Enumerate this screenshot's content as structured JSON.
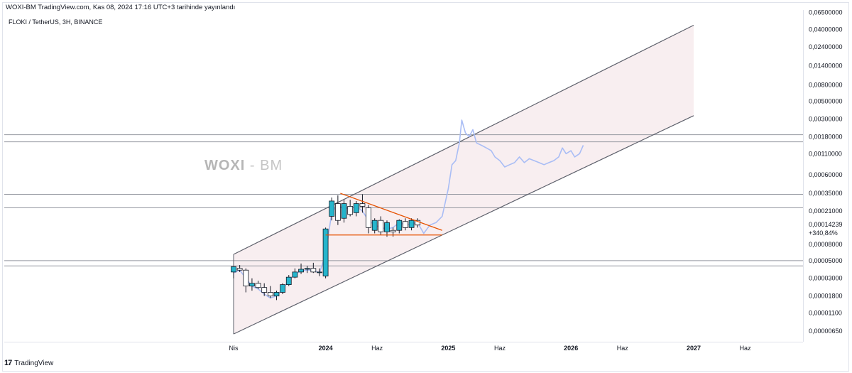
{
  "header": {
    "text": "WOXI-BM TradingView.com, Kas 08, 2024 17:16 UTC+3 tarihinde yayınlandı"
  },
  "symbol": {
    "text": "FLOKI / TetherUS, 3H, BINANCE"
  },
  "watermark": {
    "brand": "WOXI",
    "sep": " - ",
    "suffix": "BM"
  },
  "footer": {
    "logo": "17",
    "text": "TradingView"
  },
  "colors": {
    "channel": "#5d606b",
    "channel_fill": "#f8eef0",
    "hline": "#9598a1",
    "triangle": "#e65100",
    "bull": "#26b5cc",
    "bear": "#ffffff",
    "candle_border": "#131722",
    "line3h": "#a9bdf5",
    "price_label_bg": "#5b8def"
  },
  "chart_data": {
    "type": "candlestick",
    "scale": "log",
    "price_axis_labels": [
      "0,06500000",
      "0,04000000",
      "0,02400000",
      "0,01400000",
      "0,00800000",
      "0,00500000",
      "0,00300000",
      "0,00180000",
      "0,00110000",
      "0,00060000",
      "0,00035000",
      "0,00021000",
      "0,00008000",
      "0,00005000",
      "0,00003000",
      "0,00001800",
      "0,00001100",
      "0,00000650"
    ],
    "price_axis_values": [
      0.065,
      0.04,
      0.024,
      0.014,
      0.008,
      0.005,
      0.003,
      0.0018,
      0.0011,
      0.0006,
      0.00035,
      0.00021,
      8e-05,
      5e-05,
      3e-05,
      1.8e-05,
      1.1e-05,
      6.5e-06
    ],
    "ylim": [
      4.8e-06,
      0.07
    ],
    "current_price": {
      "label": "0,00014239",
      "change": "+340,84%",
      "value": 0.00014239
    },
    "time_axis": [
      {
        "label": "Nis",
        "t": 2023.25,
        "bold": false
      },
      {
        "label": "2024",
        "t": 2024.0,
        "bold": true
      },
      {
        "label": "Haz",
        "t": 2024.42,
        "bold": false
      },
      {
        "label": "2025",
        "t": 2025.0,
        "bold": true
      },
      {
        "label": "Haz",
        "t": 2025.42,
        "bold": false
      },
      {
        "label": "2026",
        "t": 2026.0,
        "bold": true
      },
      {
        "label": "Haz",
        "t": 2026.42,
        "bold": false
      },
      {
        "label": "2027",
        "t": 2027.0,
        "bold": true
      },
      {
        "label": "Haz",
        "t": 2027.42,
        "bold": false
      }
    ],
    "horizontal_levels": [
      0.0019,
      0.00155,
      0.00034,
      0.00023,
      5e-05,
      4.3e-05
    ],
    "channel": {
      "upper": [
        [
          2023.25,
          6e-05
        ],
        [
          2027.0,
          0.045
        ]
      ],
      "lower": [
        [
          2023.25,
          6e-06
        ],
        [
          2027.0,
          0.0033
        ]
      ]
    },
    "triangle": {
      "top": [
        [
          2024.12,
          0.00035
        ],
        [
          2024.95,
          0.00012
        ]
      ],
      "base": [
        [
          2024.0,
          0.000105
        ],
        [
          2024.95,
          0.000105
        ]
      ]
    },
    "candles": [
      {
        "t": 2023.25,
        "o": 3.6e-05,
        "h": 4.2e-05,
        "l": 3e-05,
        "c": 4.2e-05
      },
      {
        "t": 2023.3,
        "o": 4e-05,
        "h": 4.4e-05,
        "l": 3.6e-05,
        "c": 3.8e-05
      },
      {
        "t": 2023.35,
        "o": 3.8e-05,
        "h": 4e-05,
        "l": 2e-05,
        "c": 2.4e-05
      },
      {
        "t": 2023.4,
        "o": 2.4e-05,
        "h": 3e-05,
        "l": 2.1e-05,
        "c": 2.6e-05
      },
      {
        "t": 2023.45,
        "o": 2.6e-05,
        "h": 2.8e-05,
        "l": 2.2e-05,
        "c": 2.3e-05
      },
      {
        "t": 2023.5,
        "o": 2.3e-05,
        "h": 2.6e-05,
        "l": 1.8e-05,
        "c": 2e-05
      },
      {
        "t": 2023.55,
        "o": 2e-05,
        "h": 2.4e-05,
        "l": 1.7e-05,
        "c": 1.8e-05
      },
      {
        "t": 2023.6,
        "o": 1.8e-05,
        "h": 2.1e-05,
        "l": 1.6e-05,
        "c": 2e-05
      },
      {
        "t": 2023.65,
        "o": 2e-05,
        "h": 2.6e-05,
        "l": 1.9e-05,
        "c": 2.5e-05
      },
      {
        "t": 2023.7,
        "o": 2.5e-05,
        "h": 3.3e-05,
        "l": 2.4e-05,
        "c": 3.1e-05
      },
      {
        "t": 2023.75,
        "o": 3.1e-05,
        "h": 4e-05,
        "l": 3e-05,
        "c": 3.6e-05
      },
      {
        "t": 2023.8,
        "o": 3.6e-05,
        "h": 4.6e-05,
        "l": 3.4e-05,
        "c": 3.9e-05
      },
      {
        "t": 2023.85,
        "o": 3.9e-05,
        "h": 4.3e-05,
        "l": 3.5e-05,
        "c": 4e-05
      },
      {
        "t": 2023.9,
        "o": 4e-05,
        "h": 4.7e-05,
        "l": 3.5e-05,
        "c": 3.6e-05
      },
      {
        "t": 2023.95,
        "o": 3.6e-05,
        "h": 4e-05,
        "l": 3.2e-05,
        "c": 3.6e-05
      },
      {
        "t": 2024.0,
        "o": 3.2e-05,
        "h": 0.00013,
        "l": 3e-05,
        "c": 0.000125
      },
      {
        "t": 2024.05,
        "o": 0.00018,
        "h": 0.00031,
        "l": 0.00016,
        "c": 0.00028
      },
      {
        "t": 2024.1,
        "o": 0.00026,
        "h": 0.00033,
        "l": 0.00014,
        "c": 0.00016
      },
      {
        "t": 2024.15,
        "o": 0.00017,
        "h": 0.00029,
        "l": 0.00015,
        "c": 0.00026
      },
      {
        "t": 2024.2,
        "o": 0.00024,
        "h": 0.00029,
        "l": 0.00018,
        "c": 0.00019
      },
      {
        "t": 2024.25,
        "o": 0.0002,
        "h": 0.00028,
        "l": 0.00018,
        "c": 0.00026
      },
      {
        "t": 2024.3,
        "o": 0.00026,
        "h": 0.00034,
        "l": 0.0002,
        "c": 0.00024
      },
      {
        "t": 2024.35,
        "o": 0.00023,
        "h": 0.00025,
        "l": 0.00011,
        "c": 0.00013
      },
      {
        "t": 2024.4,
        "o": 0.00012,
        "h": 0.00017,
        "l": 0.00011,
        "c": 0.00016
      },
      {
        "t": 2024.45,
        "o": 0.00016,
        "h": 0.00018,
        "l": 0.000105,
        "c": 0.000115
      },
      {
        "t": 2024.5,
        "o": 0.000115,
        "h": 0.00016,
        "l": 0.0001,
        "c": 0.00015
      },
      {
        "t": 2024.55,
        "o": 0.00012,
        "h": 0.00013,
        "l": 0.0001,
        "c": 0.000115
      },
      {
        "t": 2024.6,
        "o": 0.00012,
        "h": 0.000165,
        "l": 0.00011,
        "c": 0.00016
      },
      {
        "t": 2024.65,
        "o": 0.000155,
        "h": 0.00017,
        "l": 0.00012,
        "c": 0.00013
      },
      {
        "t": 2024.7,
        "o": 0.00013,
        "h": 0.00017,
        "l": 0.00012,
        "c": 0.00016
      },
      {
        "t": 2024.75,
        "o": 0.00016,
        "h": 0.00017,
        "l": 0.00013,
        "c": 0.00014
      }
    ],
    "line_3h": [
      [
        2023.25,
        3.5e-05
      ],
      [
        2023.3,
        3.8e-05
      ],
      [
        2023.35,
        3e-05
      ],
      [
        2023.4,
        2.4e-05
      ],
      [
        2023.45,
        2.2e-05
      ],
      [
        2023.5,
        1.9e-05
      ],
      [
        2023.55,
        1.7e-05
      ],
      [
        2023.6,
        1.8e-05
      ],
      [
        2023.65,
        2.2e-05
      ],
      [
        2023.7,
        2.8e-05
      ],
      [
        2023.75,
        3.4e-05
      ],
      [
        2023.8,
        3.7e-05
      ],
      [
        2023.85,
        3.8e-05
      ],
      [
        2023.9,
        3.8e-05
      ],
      [
        2023.95,
        3.5e-05
      ],
      [
        2024.0,
        6e-05
      ],
      [
        2024.05,
        0.0002
      ],
      [
        2024.1,
        0.00025
      ],
      [
        2024.15,
        0.00022
      ],
      [
        2024.2,
        0.00023
      ],
      [
        2024.25,
        0.00024
      ],
      [
        2024.3,
        0.00021
      ],
      [
        2024.35,
        0.00016
      ],
      [
        2024.4,
        0.00014
      ],
      [
        2024.45,
        0.00013
      ],
      [
        2024.5,
        0.000125
      ],
      [
        2024.55,
        0.00013
      ],
      [
        2024.6,
        0.00015
      ],
      [
        2024.65,
        0.00014
      ],
      [
        2024.7,
        0.000145
      ],
      [
        2024.75,
        0.00015
      ],
      [
        2024.8,
        0.00011
      ],
      [
        2024.85,
        0.00014
      ],
      [
        2024.9,
        0.00015
      ],
      [
        2024.95,
        0.00018
      ],
      [
        2025.0,
        0.0004
      ],
      [
        2025.03,
        0.0008
      ],
      [
        2025.06,
        0.0009
      ],
      [
        2025.09,
        0.0015
      ],
      [
        2025.11,
        0.0029
      ],
      [
        2025.14,
        0.002
      ],
      [
        2025.17,
        0.0018
      ],
      [
        2025.2,
        0.0022
      ],
      [
        2025.23,
        0.0015
      ],
      [
        2025.27,
        0.0014
      ],
      [
        2025.31,
        0.0013
      ],
      [
        2025.35,
        0.0012
      ],
      [
        2025.38,
        0.001
      ],
      [
        2025.42,
        0.0009
      ],
      [
        2025.46,
        0.00075
      ],
      [
        2025.5,
        0.0008
      ],
      [
        2025.54,
        0.00085
      ],
      [
        2025.58,
        0.001
      ],
      [
        2025.62,
        0.00085
      ],
      [
        2025.66,
        0.00095
      ],
      [
        2025.7,
        0.0009
      ],
      [
        2025.74,
        0.00085
      ],
      [
        2025.78,
        0.0008
      ],
      [
        2025.82,
        0.00085
      ],
      [
        2025.86,
        0.0009
      ],
      [
        2025.9,
        0.001
      ],
      [
        2025.93,
        0.0013
      ],
      [
        2025.96,
        0.0011
      ],
      [
        2026.0,
        0.0012
      ],
      [
        2026.03,
        0.001
      ],
      [
        2026.07,
        0.0011
      ],
      [
        2026.1,
        0.0014
      ]
    ]
  }
}
